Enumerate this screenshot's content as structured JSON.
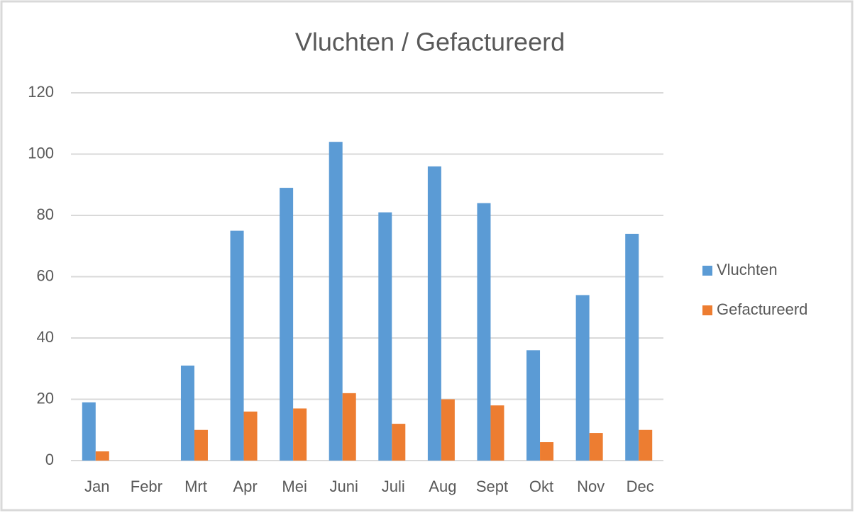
{
  "chart_data": {
    "type": "bar",
    "title": "Vluchten / Gefactureerd",
    "categories": [
      "Jan",
      "Febr",
      "Mrt",
      "Apr",
      "Mei",
      "Juni",
      "Juli",
      "Aug",
      "Sept",
      "Okt",
      "Nov",
      "Dec"
    ],
    "series": [
      {
        "name": "Vluchten",
        "color": "#5b9bd5",
        "values": [
          19,
          0,
          31,
          75,
          89,
          104,
          81,
          96,
          84,
          36,
          54,
          74
        ]
      },
      {
        "name": "Gefactureerd",
        "color": "#ed7d31",
        "values": [
          3,
          0,
          10,
          16,
          17,
          22,
          12,
          20,
          18,
          6,
          9,
          10
        ]
      }
    ],
    "ylim": [
      0,
      120
    ],
    "yticks": [
      0,
      20,
      40,
      60,
      80,
      100,
      120
    ],
    "grid": true,
    "legend": "right"
  }
}
